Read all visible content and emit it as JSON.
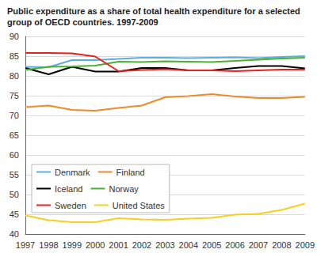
{
  "chart_data": {
    "type": "line",
    "title": "Public expenditure as a share of total health expenditure for a selected group of OECD countries. 1997-2009",
    "categories": [
      "1997",
      "1998",
      "1999",
      "2000",
      "2001",
      "2002",
      "2003",
      "2004",
      "2005",
      "2006",
      "2007",
      "2008",
      "2009"
    ],
    "series": [
      {
        "name": "Denmark",
        "color": "#5aaee0",
        "values": [
          82.3,
          82.2,
          84.0,
          84.0,
          84.3,
          84.6,
          84.6,
          84.5,
          84.6,
          84.7,
          84.5,
          84.8,
          85.0
        ]
      },
      {
        "name": "Finland",
        "color": "#ee8a2a",
        "values": [
          72.1,
          72.5,
          71.4,
          71.2,
          71.9,
          72.5,
          74.6,
          74.9,
          75.4,
          74.8,
          74.4,
          74.4,
          74.7
        ]
      },
      {
        "name": "Iceland",
        "color": "#000000",
        "values": [
          82.0,
          80.4,
          82.3,
          81.1,
          81.1,
          82.0,
          82.0,
          81.4,
          81.4,
          82.0,
          82.5,
          82.5,
          81.9
        ]
      },
      {
        "name": "Norway",
        "color": "#4caf30",
        "values": [
          81.5,
          82.3,
          82.4,
          82.6,
          83.6,
          83.5,
          83.7,
          83.6,
          83.5,
          83.8,
          84.1,
          84.4,
          84.6
        ]
      },
      {
        "name": "Sweden",
        "color": "#e8201e",
        "values": [
          85.8,
          85.8,
          85.7,
          84.9,
          81.2,
          81.5,
          81.7,
          81.4,
          81.4,
          81.2,
          81.4,
          81.6,
          81.6
        ]
      },
      {
        "name": "United States",
        "color": "#f5d020",
        "values": [
          44.7,
          43.5,
          43.0,
          43.0,
          44.0,
          43.7,
          43.6,
          43.9,
          44.1,
          44.9,
          45.1,
          46.1,
          47.7
        ]
      }
    ],
    "ylim": [
      40,
      90
    ],
    "yticks": [
      40,
      45,
      50,
      55,
      60,
      65,
      70,
      75,
      80,
      85,
      90
    ],
    "grid": true,
    "legend": "lower left"
  }
}
